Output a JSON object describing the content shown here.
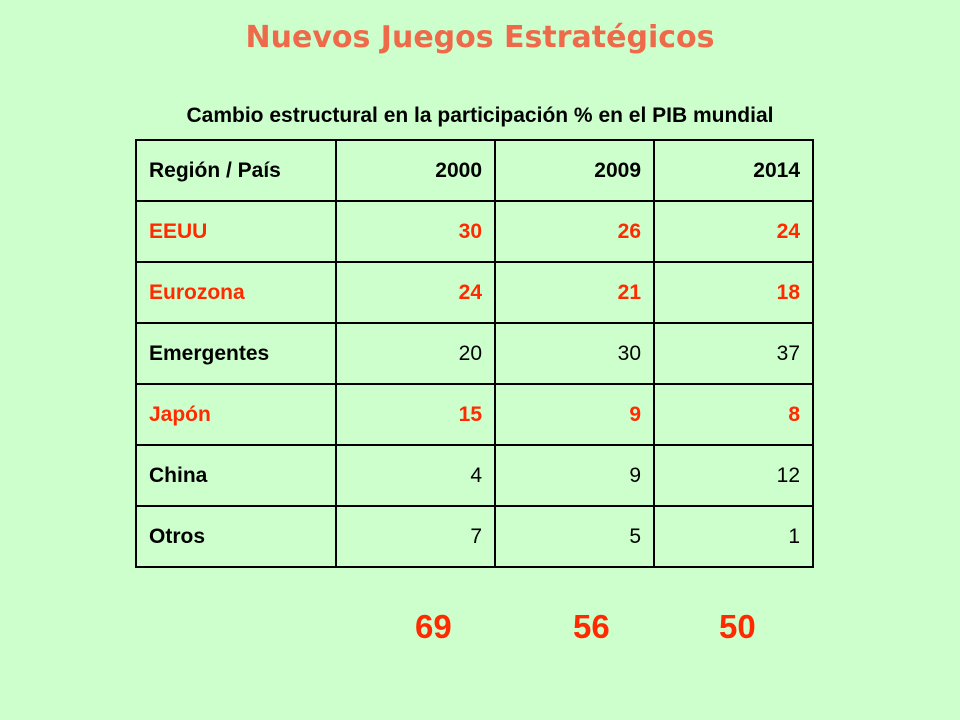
{
  "title": "Nuevos Juegos Estratégicos",
  "subtitle": "Cambio estructural en la participación % en el PIB mundial",
  "table": {
    "headers": [
      "Región / País",
      "2000",
      "2009",
      "2014"
    ],
    "rows": [
      {
        "label": "EEUU",
        "values": [
          "30",
          "26",
          "24"
        ],
        "highlight": true
      },
      {
        "label": "Eurozona",
        "values": [
          "24",
          "21",
          "18"
        ],
        "highlight": true
      },
      {
        "label": "Emergentes",
        "values": [
          "20",
          "30",
          "37"
        ],
        "highlight": false
      },
      {
        "label": "Japón",
        "values": [
          "15",
          "9",
          "8"
        ],
        "highlight": true
      },
      {
        "label": "China",
        "values": [
          "4",
          "9",
          "12"
        ],
        "highlight": false
      },
      {
        "label": "Otros",
        "values": [
          "7",
          "5",
          "1"
        ],
        "highlight": false
      }
    ]
  },
  "totals": [
    "69",
    "56",
    "50"
  ],
  "colors": {
    "background": "#ccffcc",
    "title": "#ee6a4a",
    "highlight": "#ff2a00"
  }
}
